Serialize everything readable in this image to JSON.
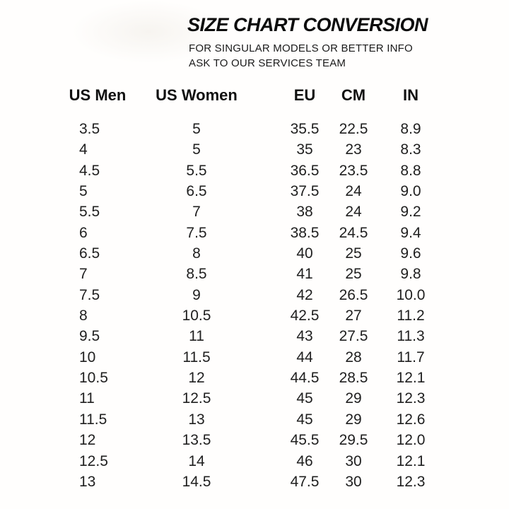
{
  "page": {
    "background_color": "#ffffff",
    "text_color": "#1c1c1c",
    "title_color": "#0c0c0c"
  },
  "header": {
    "title": "SIZE CHART CONVERSION",
    "subtitle_line1": "FOR SINGULAR MODELS OR BETTER INFO",
    "subtitle_line2": "ASK TO OUR SERVICES TEAM"
  },
  "chart_data": {
    "type": "table",
    "title": "SIZE CHART CONVERSION",
    "columns": [
      "US Men",
      "US Women",
      "EU",
      "CM",
      "IN"
    ],
    "rows": [
      [
        "3.5",
        "5",
        "35.5",
        "22.5",
        "8.9"
      ],
      [
        "4",
        "5",
        "35",
        "23",
        "8.3"
      ],
      [
        "4.5",
        "5.5",
        "36.5",
        "23.5",
        "8.8"
      ],
      [
        "5",
        "6.5",
        "37.5",
        "24",
        "9.0"
      ],
      [
        "5.5",
        "7",
        "38",
        "24",
        "9.2"
      ],
      [
        "6",
        "7.5",
        "38.5",
        "24.5",
        "9.4"
      ],
      [
        "6.5",
        "8",
        "40",
        "25",
        "9.6"
      ],
      [
        "7",
        "8.5",
        "41",
        "25",
        "9.8"
      ],
      [
        "7.5",
        "9",
        "42",
        "26.5",
        "10.0"
      ],
      [
        "8",
        "10.5",
        "42.5",
        "27",
        "11.2"
      ],
      [
        "9.5",
        "11",
        "43",
        "27.5",
        "11.3"
      ],
      [
        "10",
        "11.5",
        "44",
        "28",
        "11.7"
      ],
      [
        "10.5",
        "12",
        "44.5",
        "28.5",
        "12.1"
      ],
      [
        "11",
        "12.5",
        "45",
        "29",
        "12.3"
      ],
      [
        "11.5",
        "13",
        "45",
        "29",
        "12.6"
      ],
      [
        "12",
        "13.5",
        "45.5",
        "29.5",
        "12.0"
      ],
      [
        "12.5",
        "14",
        "46",
        "30",
        "12.1"
      ],
      [
        "13",
        "14.5",
        "47.5",
        "30",
        "12.3"
      ]
    ],
    "layout": {
      "grid": "off",
      "legend": "none",
      "column_alignment": [
        "left",
        "center",
        "center",
        "center",
        "center"
      ]
    }
  }
}
